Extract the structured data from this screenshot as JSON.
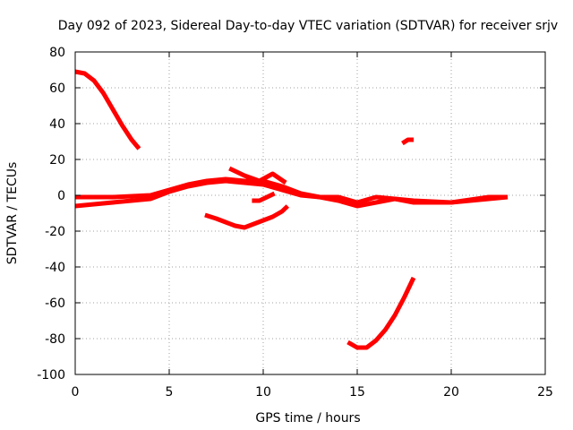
{
  "chart_data": {
    "type": "line",
    "title": "Day 092 of 2023, Sidereal Day-to-day VTEC variation (SDTVAR) for receiver srjv",
    "xlabel": "GPS time / hours",
    "ylabel": "SDTVAR / TECUs",
    "xlim": [
      0,
      25
    ],
    "ylim": [
      -100,
      80
    ],
    "xticks": [
      0,
      5,
      10,
      15,
      20,
      25
    ],
    "yticks": [
      -100,
      -80,
      -60,
      -40,
      -20,
      0,
      20,
      40,
      60,
      80
    ],
    "grid": true,
    "line_color": "#ff0000",
    "series": [
      {
        "name": "arc-high-decay",
        "points": [
          [
            0,
            69
          ],
          [
            0.5,
            68
          ],
          [
            1.0,
            64
          ],
          [
            1.5,
            57
          ],
          [
            2.0,
            48
          ],
          [
            2.5,
            39
          ],
          [
            3.0,
            31
          ],
          [
            3.4,
            26
          ]
        ]
      },
      {
        "name": "arc-main-upper",
        "points": [
          [
            0,
            -1
          ],
          [
            2,
            -1
          ],
          [
            4,
            0
          ],
          [
            5,
            3
          ],
          [
            6,
            6
          ],
          [
            7,
            8
          ],
          [
            8,
            9
          ],
          [
            9,
            8
          ],
          [
            10,
            8
          ],
          [
            11,
            5
          ],
          [
            12,
            1
          ],
          [
            13,
            -1
          ],
          [
            14,
            -1
          ],
          [
            15,
            -4
          ],
          [
            16,
            -1
          ],
          [
            17,
            -2
          ],
          [
            18,
            -3
          ],
          [
            20,
            -4
          ],
          [
            22,
            -1
          ],
          [
            23,
            -1
          ]
        ]
      },
      {
        "name": "arc-main-lower",
        "points": [
          [
            0,
            -6
          ],
          [
            2,
            -4
          ],
          [
            4,
            -2
          ],
          [
            5,
            2
          ],
          [
            6,
            5
          ],
          [
            7,
            7
          ],
          [
            8,
            8
          ],
          [
            9,
            7
          ],
          [
            10,
            6
          ],
          [
            11,
            3
          ],
          [
            12,
            0
          ],
          [
            13,
            -1
          ],
          [
            14,
            -3
          ],
          [
            15,
            -6
          ],
          [
            16,
            -4
          ],
          [
            17,
            -2
          ],
          [
            18,
            -4
          ],
          [
            20,
            -4
          ],
          [
            22,
            -2
          ],
          [
            23,
            -1
          ]
        ]
      },
      {
        "name": "arc-secondary-bump",
        "points": [
          [
            8.2,
            15
          ],
          [
            9,
            11
          ],
          [
            9.8,
            8
          ],
          [
            10.5,
            12
          ],
          [
            11.2,
            7
          ]
        ]
      },
      {
        "name": "arc-small-dip",
        "points": [
          [
            9.4,
            -3
          ],
          [
            9.8,
            -3
          ],
          [
            10.2,
            -1
          ],
          [
            10.6,
            1
          ]
        ]
      },
      {
        "name": "arc-trough",
        "points": [
          [
            6.9,
            -11
          ],
          [
            7.5,
            -13
          ],
          [
            8.0,
            -15
          ],
          [
            8.5,
            -17
          ],
          [
            9.0,
            -18
          ],
          [
            9.5,
            -16
          ],
          [
            10.0,
            -14
          ],
          [
            10.5,
            -12
          ],
          [
            11.0,
            -9
          ],
          [
            11.3,
            -6
          ]
        ]
      },
      {
        "name": "arc-deep-recovery",
        "points": [
          [
            14.5,
            -82
          ],
          [
            15.0,
            -85
          ],
          [
            15.5,
            -85
          ],
          [
            16.0,
            -81
          ],
          [
            16.5,
            -75
          ],
          [
            17.0,
            -67
          ],
          [
            17.5,
            -57
          ],
          [
            18.0,
            -46
          ]
        ]
      },
      {
        "name": "arc-short-high",
        "points": [
          [
            17.4,
            29
          ],
          [
            17.7,
            31
          ],
          [
            18.0,
            31
          ]
        ]
      }
    ]
  }
}
